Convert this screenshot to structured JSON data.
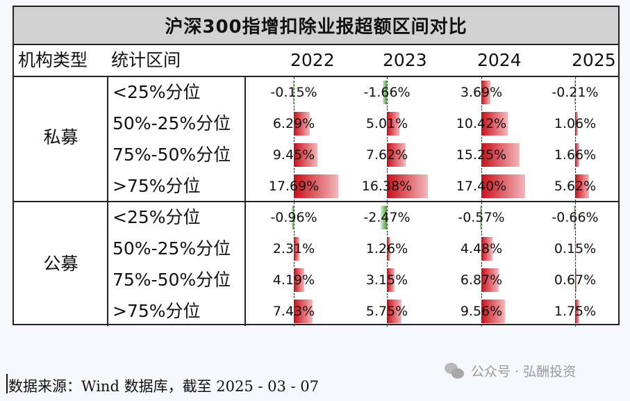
{
  "title": "沪深300指增扣除业报超额区间对比",
  "headers": {
    "org_type": "机构类型",
    "interval": "统计区间",
    "years": [
      "2022",
      "2023",
      "2024",
      "2025"
    ]
  },
  "groups": [
    {
      "label": "私募",
      "rows": [
        {
          "label": "<25%分位",
          "values": [
            "-0.15%",
            "-1.66%",
            "3.69%",
            "-0.21%"
          ]
        },
        {
          "label": "50%-25%分位",
          "values": [
            "6.29%",
            "5.01%",
            "10.42%",
            "1.06%"
          ]
        },
        {
          "label": "75%-50%分位",
          "values": [
            "9.45%",
            "7.62%",
            "15.25%",
            "1.66%"
          ]
        },
        {
          "label": ">75%分位",
          "values": [
            "17.69%",
            "16.38%",
            "17.40%",
            "5.62%"
          ]
        }
      ]
    },
    {
      "label": "公募",
      "rows": [
        {
          "label": "<25%分位",
          "values": [
            "-0.96%",
            "-2.47%",
            "-0.57%",
            "-0.66%"
          ]
        },
        {
          "label": "50%-25%分位",
          "values": [
            "2.31%",
            "1.26%",
            "4.48%",
            "0.15%"
          ]
        },
        {
          "label": "75%-50%分位",
          "values": [
            "4.19%",
            "3.15%",
            "6.87%",
            "0.67%"
          ]
        },
        {
          "label": ">75%分位",
          "values": [
            "7.43%",
            "5.75%",
            "9.56%",
            "1.75%"
          ]
        }
      ]
    }
  ],
  "source": "数据来源：Wind 数据库，截至 2025 - 03 - 07",
  "watermark": "公众号 · 弘酬投资",
  "colors": {
    "positive": "#c8101a",
    "negative": "#4f9b3c",
    "title_bg": "#d2d2d2"
  }
}
